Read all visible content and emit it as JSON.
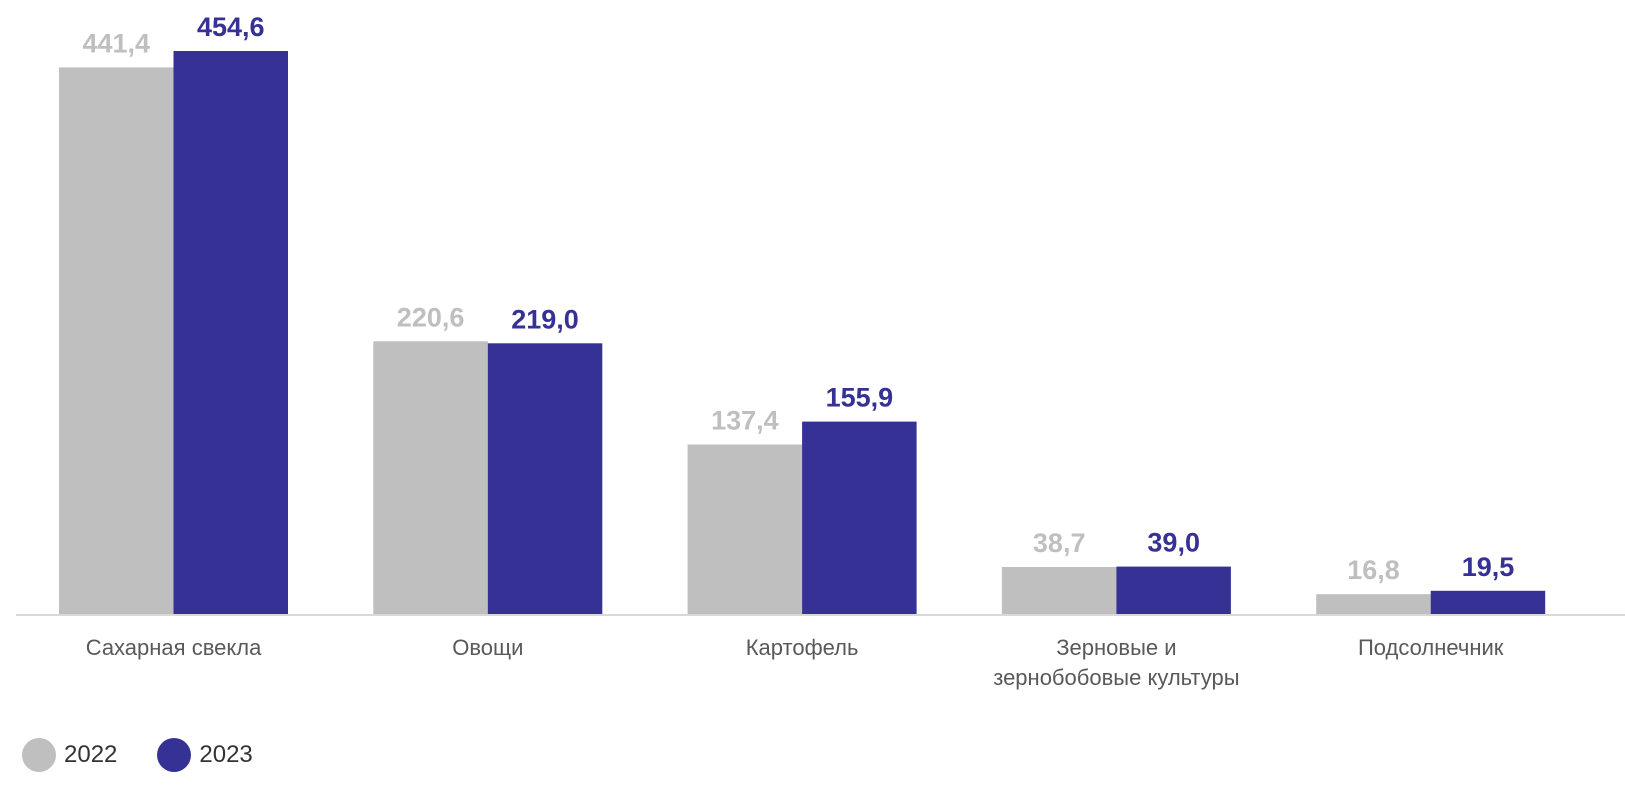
{
  "chart_data": {
    "type": "bar",
    "categories": [
      "Сахарная свекла",
      "Овощи",
      "Картофель",
      "Зерновые и зернобобовые культуры",
      "Подсолнечник"
    ],
    "category_lines": [
      [
        "Сахарная свекла"
      ],
      [
        "Овощи"
      ],
      [
        "Картофель"
      ],
      [
        "Зерновые и",
        "зернобобовые культуры"
      ],
      [
        "Подсолнечник"
      ]
    ],
    "series": [
      {
        "name": "2022",
        "values": [
          441.4,
          220.6,
          137.4,
          38.7,
          16.8
        ],
        "labels": [
          "441,4",
          "220,6",
          "137,4",
          "38,7",
          "16,8"
        ],
        "color": "#bfbfbf"
      },
      {
        "name": "2023",
        "values": [
          454.6,
          219.0,
          155.9,
          39.0,
          19.5
        ],
        "labels": [
          "454,6",
          "219,0",
          "155,9",
          "39,0",
          "19,5"
        ],
        "color": "#363194"
      }
    ],
    "ylim": [
      0,
      454.6
    ],
    "grid": false,
    "legend_position": "bottom-left"
  }
}
